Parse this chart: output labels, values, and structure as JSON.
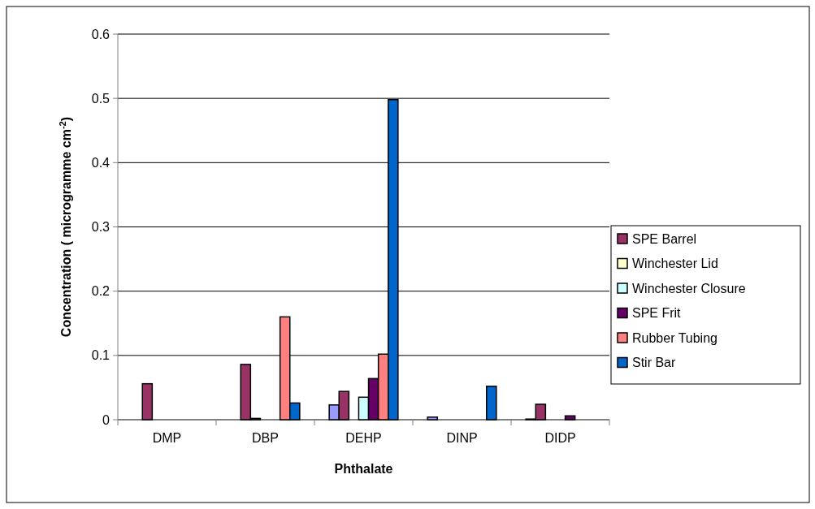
{
  "chart_data": {
    "type": "bar",
    "xlabel": "Phthalate",
    "ylabel": "Concentration ( microgramme cm$^{-2}$)",
    "categories": [
      "DMP",
      "DBP",
      "DEHP",
      "DINP",
      "DIDP"
    ],
    "series": [
      {
        "color": "#9999ff",
        "values": [
          0,
          0,
          0.023,
          0.004,
          0.001
        ]
      },
      {
        "name": "SPE Barrel",
        "color": "#993366",
        "values": [
          0.056,
          0.086,
          0.044,
          0,
          0.024
        ]
      },
      {
        "name": "Winchester Lid",
        "color": "#ffffcc",
        "values": [
          0,
          0.002,
          0,
          0,
          0
        ]
      },
      {
        "name": "Winchester Closure",
        "color": "#ccffff",
        "values": [
          0,
          0,
          0.035,
          0,
          0
        ]
      },
      {
        "name": "SPE Frit",
        "color": "#660066",
        "values": [
          0,
          0,
          0.064,
          0,
          0.006
        ]
      },
      {
        "name": "Rubber Tubing",
        "color": "#ff8080",
        "values": [
          0,
          0.16,
          0.102,
          0,
          0
        ]
      },
      {
        "name": "Stir Bar",
        "color": "#0066cc",
        "values": [
          0,
          0.026,
          0.498,
          0.052,
          0
        ]
      }
    ],
    "ylim": [
      0,
      0.6
    ],
    "yticks": [
      0,
      0.1,
      0.2,
      0.3,
      0.4,
      0.5,
      0.6
    ],
    "grid": "y",
    "legend": "right"
  }
}
